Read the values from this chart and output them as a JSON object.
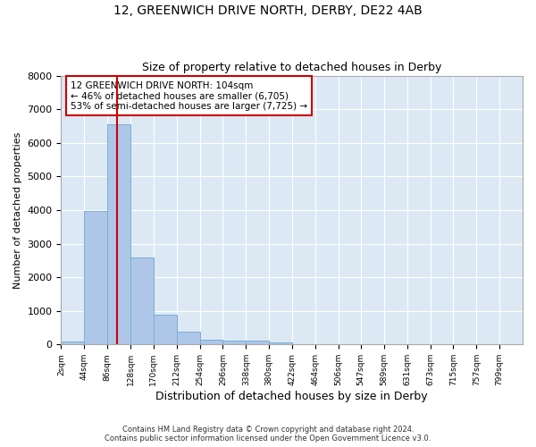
{
  "title": "12, GREENWICH DRIVE NORTH, DERBY, DE22 4AB",
  "subtitle": "Size of property relative to detached houses in Derby",
  "xlabel": "Distribution of detached houses by size in Derby",
  "ylabel": "Number of detached properties",
  "footer_line1": "Contains HM Land Registry data © Crown copyright and database right 2024.",
  "footer_line2": "Contains public sector information licensed under the Open Government Licence v3.0.",
  "annotation_title": "12 GREENWICH DRIVE NORTH: 104sqm",
  "annotation_line1": "← 46% of detached houses are smaller (6,705)",
  "annotation_line2": "53% of semi-detached houses are larger (7,725) →",
  "property_size": 104,
  "bin_edges": [
    2,
    44,
    86,
    128,
    170,
    212,
    254,
    296,
    338,
    380,
    422,
    464,
    506,
    547,
    589,
    631,
    673,
    715,
    757,
    799,
    841
  ],
  "bin_counts": [
    100,
    3980,
    6540,
    2590,
    900,
    390,
    140,
    120,
    110,
    50,
    0,
    0,
    0,
    0,
    0,
    0,
    0,
    0,
    0,
    0
  ],
  "bar_color": "#aec6e8",
  "bar_edge_color": "#7aaed4",
  "line_color": "#cc0000",
  "background_color": "#dce9f5",
  "ylim": [
    0,
    8000
  ],
  "yticks": [
    0,
    1000,
    2000,
    3000,
    4000,
    5000,
    6000,
    7000,
    8000
  ],
  "annotation_box_color": "#ffffff",
  "annotation_box_edge": "#cc0000",
  "grid_color": "#ffffff",
  "title_fontsize": 10,
  "subtitle_fontsize": 9,
  "annotation_fontsize": 7.5,
  "ylabel_fontsize": 8,
  "xlabel_fontsize": 9,
  "ytick_fontsize": 8,
  "xtick_fontsize": 6.5
}
